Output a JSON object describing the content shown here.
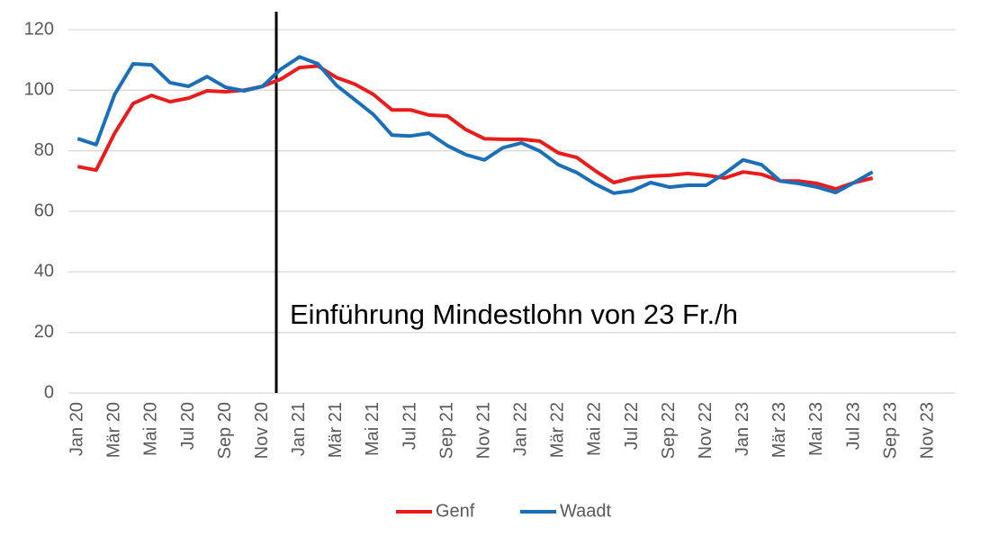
{
  "chart_data": {
    "type": "line",
    "annotation": "Einführung Mindestlohn von 23 Fr./h",
    "categories": [
      "Jan 20",
      null,
      "Mär 20",
      null,
      "Mai 20",
      null,
      "Jul 20",
      null,
      "Sep 20",
      null,
      "Nov 20",
      null,
      "Jan 21",
      null,
      "Mär 21",
      null,
      "Mai 21",
      null,
      "Jul 21",
      null,
      "Sep 21",
      null,
      "Nov 21",
      null,
      "Jan 22",
      null,
      "Mär 22",
      null,
      "Mai 22",
      null,
      "Jul 22",
      null,
      "Sep 22",
      null,
      "Nov 22",
      null,
      "Jan 23",
      null,
      "Mär 23",
      null,
      "Mai 23",
      null,
      "Jul 23",
      null,
      "Sep 23",
      null,
      "Nov 23",
      null
    ],
    "series": [
      {
        "name": "Genf",
        "color": "#e81c1c",
        "values": [
          74.8,
          73.6,
          85.8,
          95.6,
          98.3,
          96.2,
          97.4,
          99.8,
          99.5,
          100,
          101.3,
          103.7,
          107.5,
          108,
          104.2,
          102,
          98.6,
          93.5,
          93.5,
          91.8,
          91.5,
          87,
          84,
          83.8,
          83.8,
          83.2,
          79.3,
          77.8,
          73.4,
          69.5,
          71,
          71.6,
          71.9,
          72.5,
          71.9,
          71,
          73,
          72.2,
          70,
          70,
          69.2,
          67.4,
          69.5,
          71,
          null,
          null,
          null,
          null
        ]
      },
      {
        "name": "Waadt",
        "color": "#1a6fb8",
        "values": [
          84,
          82,
          98.6,
          108.7,
          108.4,
          102.5,
          101.3,
          104.5,
          101,
          99.8,
          101.3,
          107,
          111,
          108.7,
          101.6,
          96.8,
          92,
          85.2,
          84.9,
          85.8,
          81.7,
          78.7,
          77,
          81,
          82.6,
          79.9,
          75.4,
          72.8,
          69,
          66,
          66.8,
          69.5,
          68,
          68.6,
          68.6,
          72.5,
          77,
          75.4,
          70,
          69.2,
          68,
          66.2,
          69.5,
          73,
          null,
          null,
          null,
          null
        ]
      }
    ],
    "ylim": [
      0,
      120
    ],
    "yticks": [
      0,
      20,
      40,
      60,
      80,
      100,
      120
    ],
    "grid": true,
    "legend": "bottom"
  }
}
